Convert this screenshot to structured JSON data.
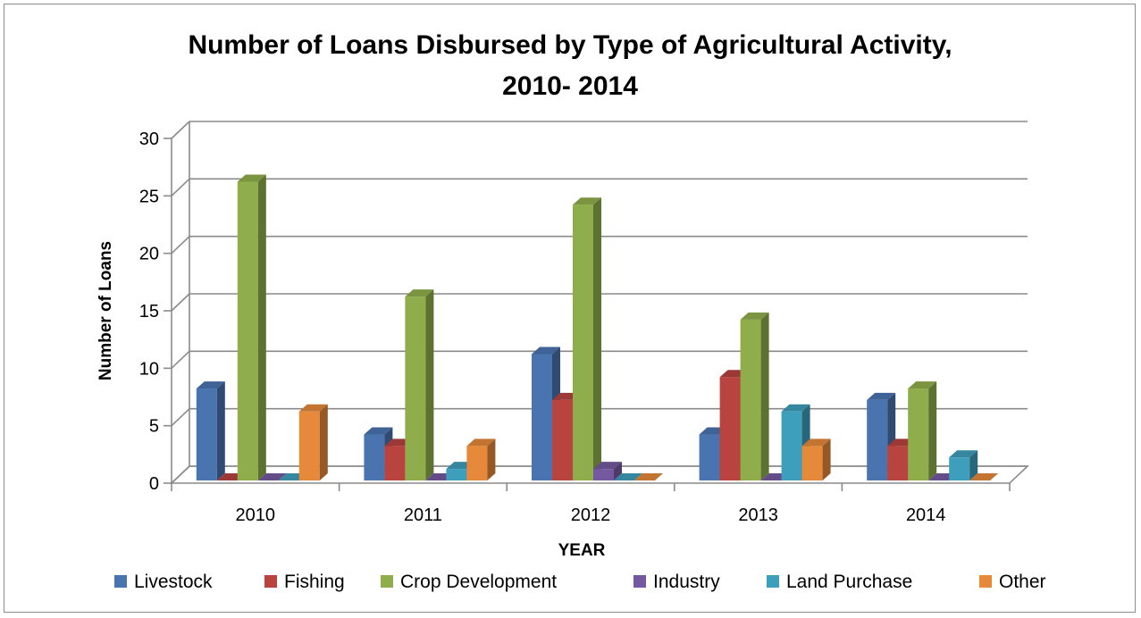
{
  "chart_data": {
    "type": "bar",
    "title_lines": [
      "Number of Loans Disbursed by Type of Agricultural Activity,",
      "2010- 2014"
    ],
    "xlabel": "YEAR",
    "ylabel": "Number of Loans",
    "categories": [
      "2010",
      "2011",
      "2012",
      "2013",
      "2014"
    ],
    "ylim": [
      0,
      30
    ],
    "yticks": [
      "0",
      "5",
      "10",
      "15",
      "20",
      "25",
      "30"
    ],
    "grid": true,
    "legend_position": "bottom",
    "series": [
      {
        "name": "Livestock",
        "color": "#4a74b0",
        "values": [
          8,
          4,
          11,
          4,
          7
        ]
      },
      {
        "name": "Fishing",
        "color": "#b8433f",
        "values": [
          0,
          3,
          7,
          9,
          3
        ]
      },
      {
        "name": "Crop Development",
        "color": "#8fae4b",
        "values": [
          26,
          16,
          24,
          14,
          8
        ]
      },
      {
        "name": "Industry",
        "color": "#7559a0",
        "values": [
          0,
          0,
          1,
          0,
          0
        ]
      },
      {
        "name": "Land Purchase",
        "color": "#3d9fbb",
        "values": [
          0,
          1,
          0,
          6,
          2
        ]
      },
      {
        "name": "Other",
        "color": "#e6893a",
        "values": [
          6,
          3,
          0,
          3,
          0
        ]
      }
    ]
  }
}
